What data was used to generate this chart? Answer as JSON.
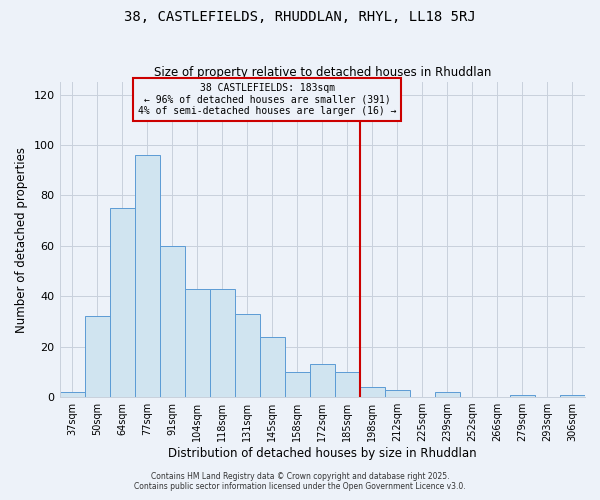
{
  "title": "38, CASTLEFIELDS, RHUDDLAN, RHYL, LL18 5RJ",
  "subtitle": "Size of property relative to detached houses in Rhuddlan",
  "xlabel": "Distribution of detached houses by size in Rhuddlan",
  "ylabel": "Number of detached properties",
  "bar_color": "#d0e4f0",
  "bar_edge_color": "#5b9bd5",
  "background_color": "#edf2f9",
  "grid_color": "#c8d0dc",
  "bin_labels": [
    "37sqm",
    "50sqm",
    "64sqm",
    "77sqm",
    "91sqm",
    "104sqm",
    "118sqm",
    "131sqm",
    "145sqm",
    "158sqm",
    "172sqm",
    "185sqm",
    "198sqm",
    "212sqm",
    "225sqm",
    "239sqm",
    "252sqm",
    "266sqm",
    "279sqm",
    "293sqm",
    "306sqm"
  ],
  "bar_heights": [
    2,
    32,
    75,
    96,
    60,
    43,
    43,
    33,
    24,
    10,
    13,
    10,
    4,
    3,
    0,
    2,
    0,
    0,
    1,
    0,
    1
  ],
  "vline_x": 11.5,
  "vline_color": "#cc0000",
  "annotation_title": "38 CASTLEFIELDS: 183sqm",
  "annotation_line1": "← 96% of detached houses are smaller (391)",
  "annotation_line2": "4% of semi-detached houses are larger (16) →",
  "ylim": [
    0,
    125
  ],
  "yticks": [
    0,
    20,
    40,
    60,
    80,
    100,
    120
  ],
  "footer1": "Contains HM Land Registry data © Crown copyright and database right 2025.",
  "footer2": "Contains public sector information licensed under the Open Government Licence v3.0."
}
